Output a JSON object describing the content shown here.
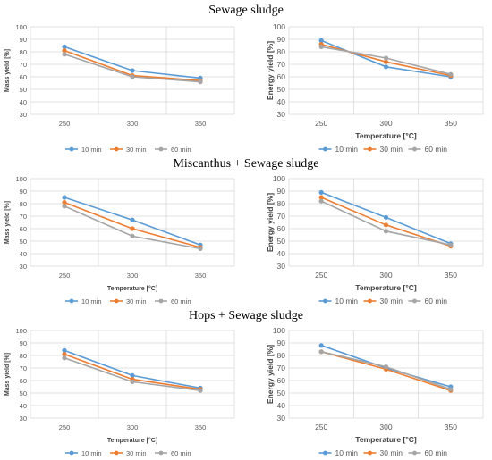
{
  "sections": [
    {
      "title": "Sewage sludge"
    },
    {
      "title": "Miscanthus + Sewage sludge"
    },
    {
      "title": "Hops + Sewage sludge"
    }
  ],
  "chart_data": [
    {
      "type": "line",
      "title": "",
      "xlabel": "",
      "ylabel": "Mass yield [%]",
      "categories": [
        "250",
        "300",
        "350"
      ],
      "ylim": [
        30,
        100
      ],
      "yticks": [
        30,
        40,
        50,
        60,
        70,
        80,
        90,
        100
      ],
      "series": [
        {
          "name": "10 min",
          "color": "#5b9bd5",
          "values": [
            84,
            65,
            59
          ]
        },
        {
          "name": "30 min",
          "color": "#ed7d31",
          "values": [
            81,
            61,
            57
          ]
        },
        {
          "name": "60 min",
          "color": "#a5a5a5",
          "values": [
            78,
            60,
            56
          ]
        }
      ],
      "legend": "bottom",
      "grid": "horizontal"
    },
    {
      "type": "line",
      "title": "",
      "xlabel": "Temperature [°C]",
      "ylabel": "Energy yield [%]",
      "categories": [
        "250",
        "300",
        "350"
      ],
      "ylim": [
        30,
        100
      ],
      "yticks": [
        30,
        40,
        50,
        60,
        70,
        80,
        90,
        100
      ],
      "series": [
        {
          "name": "10 min",
          "color": "#5b9bd5",
          "values": [
            89,
            68,
            60
          ]
        },
        {
          "name": "30 min",
          "color": "#ed7d31",
          "values": [
            86,
            72,
            61
          ]
        },
        {
          "name": "60 min",
          "color": "#a5a5a5",
          "values": [
            84,
            75,
            62
          ]
        }
      ],
      "legend": "bottom",
      "grid": "horizontal"
    },
    {
      "type": "line",
      "title": "",
      "xlabel": "Temperature [°C]",
      "ylabel": "Mass yield [%]",
      "categories": [
        "250",
        "300",
        "350"
      ],
      "ylim": [
        30,
        100
      ],
      "yticks": [
        30,
        40,
        50,
        60,
        70,
        80,
        90,
        100
      ],
      "series": [
        {
          "name": "10 min",
          "color": "#5b9bd5",
          "values": [
            85,
            67,
            47
          ]
        },
        {
          "name": "30 min",
          "color": "#ed7d31",
          "values": [
            81,
            60,
            45
          ]
        },
        {
          "name": "60 min",
          "color": "#a5a5a5",
          "values": [
            78,
            54,
            44
          ]
        }
      ],
      "legend": "bottom",
      "grid": "horizontal"
    },
    {
      "type": "line",
      "title": "",
      "xlabel": "Temperature [°C]",
      "ylabel": "Energy yield [%]",
      "categories": [
        "250",
        "300",
        "350"
      ],
      "ylim": [
        30,
        100
      ],
      "yticks": [
        30,
        40,
        50,
        60,
        70,
        80,
        90,
        100
      ],
      "series": [
        {
          "name": "10 min",
          "color": "#5b9bd5",
          "values": [
            89,
            69,
            48
          ]
        },
        {
          "name": "30 min",
          "color": "#ed7d31",
          "values": [
            85,
            63,
            46
          ]
        },
        {
          "name": "60 min",
          "color": "#a5a5a5",
          "values": [
            82,
            58,
            47
          ]
        }
      ],
      "legend": "bottom",
      "grid": "horizontal"
    },
    {
      "type": "line",
      "title": "",
      "xlabel": "Temperature [°C]",
      "ylabel": "Mass yield [%]",
      "categories": [
        "250",
        "300",
        "350"
      ],
      "ylim": [
        30,
        100
      ],
      "yticks": [
        30,
        40,
        50,
        60,
        70,
        80,
        90,
        100
      ],
      "series": [
        {
          "name": "10 min",
          "color": "#5b9bd5",
          "values": [
            84,
            64,
            54
          ]
        },
        {
          "name": "30 min",
          "color": "#ed7d31",
          "values": [
            81,
            61,
            53
          ]
        },
        {
          "name": "60 min",
          "color": "#a5a5a5",
          "values": [
            78,
            59,
            52
          ]
        }
      ],
      "legend": "bottom",
      "grid": "horizontal"
    },
    {
      "type": "line",
      "title": "",
      "xlabel": "Temperature [°C]",
      "ylabel": "Energy yield [%]",
      "categories": [
        "250",
        "300",
        "350"
      ],
      "ylim": [
        30,
        100
      ],
      "yticks": [
        30,
        40,
        50,
        60,
        70,
        80,
        90,
        100
      ],
      "series": [
        {
          "name": "10 min",
          "color": "#5b9bd5",
          "values": [
            88,
            70,
            55
          ]
        },
        {
          "name": "30 min",
          "color": "#ed7d31",
          "values": [
            83,
            69,
            52
          ]
        },
        {
          "name": "60 min",
          "color": "#a5a5a5",
          "values": [
            83,
            71,
            53
          ]
        }
      ],
      "legend": "bottom",
      "grid": "horizontal"
    }
  ]
}
